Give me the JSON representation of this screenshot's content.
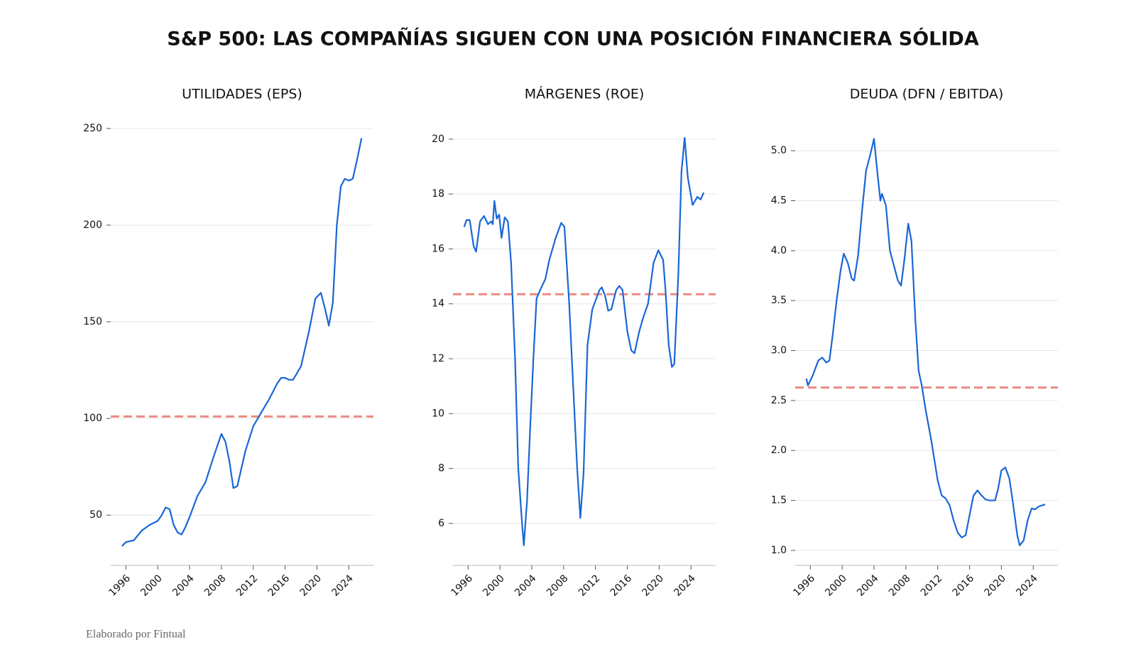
{
  "title": "S&P 500: LAS COMPAÑÍAS SIGUEN CON UNA POSICIÓN FINANCIERA SÓLIDA",
  "footer": "Elaborado por Fintual",
  "chart_data": [
    {
      "type": "line",
      "title": "UTILIDADES (EPS)",
      "color": "#1a66d6",
      "xlim": [
        1994.1,
        2027.1
      ],
      "xticks": [
        1996,
        2000,
        2004,
        2008,
        2012,
        2016,
        2020,
        2024
      ],
      "ylim": [
        24,
        254
      ],
      "yticks": [
        50,
        100,
        150,
        200,
        250
      ],
      "grid": true,
      "reference_line": {
        "value": 101,
        "color": "#ec8a82",
        "style": "dashed"
      },
      "x": [
        1995.5,
        1996,
        1997,
        1998,
        1999,
        2000,
        2000.5,
        2001,
        2001.5,
        2002,
        2002.5,
        2003,
        2003.5,
        2004,
        2005,
        2006,
        2007,
        2008,
        2008.5,
        2009,
        2009.5,
        2010,
        2011,
        2012,
        2013,
        2014,
        2015,
        2015.5,
        2016,
        2016.5,
        2017,
        2018,
        2019,
        2019.8,
        2020.5,
        2021,
        2021.5,
        2022,
        2022.5,
        2023,
        2023.5,
        2024,
        2024.5,
        2025,
        2025.6
      ],
      "values": [
        34,
        36,
        37,
        42,
        45,
        47,
        50,
        54,
        53,
        45,
        41,
        40,
        44,
        49,
        60,
        67,
        80,
        92,
        88,
        78,
        64,
        65,
        83,
        96,
        103,
        110,
        118,
        121,
        121,
        120,
        120,
        127,
        145,
        162,
        165,
        157,
        148,
        160,
        200,
        220,
        224,
        223,
        224,
        233,
        245
      ]
    },
    {
      "type": "line",
      "title": "MÁRGENES (ROE)",
      "color": "#1a66d6",
      "xlim": [
        1994.1,
        2027.1
      ],
      "xticks": [
        1996,
        2000,
        2004,
        2008,
        2012,
        2016,
        2020,
        2024
      ],
      "ylim": [
        4.47,
        20.67
      ],
      "yticks": [
        6,
        8,
        10,
        12,
        14,
        16,
        18,
        20
      ],
      "grid": true,
      "reference_line": {
        "value": 14.35,
        "color": "#ec8a82",
        "style": "dashed"
      },
      "x": [
        1995.5,
        1995.8,
        1996.2,
        1996.7,
        1997,
        1997.5,
        1998,
        1998.5,
        1998.9,
        1999.1,
        1999.3,
        1999.6,
        1999.9,
        2000.2,
        2000.6,
        2001,
        2001.4,
        2001.9,
        2002.3,
        2002.8,
        2003,
        2003.4,
        2003.8,
        2004.2,
        2004.6,
        2005.2,
        2005.7,
        2006.2,
        2007,
        2007.7,
        2008.1,
        2008.7,
        2009.2,
        2009.7,
        2010.1,
        2010.5,
        2011,
        2011.6,
        2012.5,
        2012.8,
        2013.2,
        2013.6,
        2014,
        2014.6,
        2015,
        2015.4,
        2016,
        2016.5,
        2016.9,
        2017.5,
        2018,
        2018.6,
        2019.3,
        2019.9,
        2020.5,
        2020.8,
        2021.2,
        2021.6,
        2021.9,
        2022.4,
        2022.8,
        2023.2,
        2023.6,
        2024.2,
        2024.8,
        2025.2,
        2025.6
      ],
      "values": [
        16.8,
        17.05,
        17.05,
        16.1,
        15.9,
        17.0,
        17.2,
        16.9,
        17.0,
        16.9,
        17.75,
        17.1,
        17.25,
        16.4,
        17.15,
        17.0,
        15.5,
        12.0,
        8.0,
        5.9,
        5.2,
        6.8,
        9.5,
        12.0,
        14.2,
        14.6,
        14.9,
        15.6,
        16.4,
        16.95,
        16.8,
        14.0,
        11.0,
        8.0,
        6.2,
        7.8,
        12.5,
        13.8,
        14.5,
        14.6,
        14.3,
        13.75,
        13.8,
        14.5,
        14.65,
        14.5,
        13.0,
        12.3,
        12.2,
        13.0,
        13.5,
        14.0,
        15.5,
        15.95,
        15.6,
        14.5,
        12.5,
        11.7,
        11.8,
        15.0,
        18.8,
        20.05,
        18.6,
        17.6,
        17.9,
        17.8,
        18.05
      ]
    },
    {
      "type": "line",
      "title": "DEUDA (DFN / EBITDA)",
      "color": "#1a66d6",
      "xlim": [
        1994.1,
        2027.1
      ],
      "xticks": [
        1996,
        2000,
        2004,
        2008,
        2012,
        2016,
        2020,
        2024
      ],
      "ylim": [
        0.85,
        5.3
      ],
      "yticks": [
        {
          "value": 1,
          "label": "1.0"
        },
        1.5,
        {
          "value": 2,
          "label": "2.0"
        },
        2.5,
        {
          "value": 3,
          "label": "3.0"
        },
        3.5,
        {
          "value": 4,
          "label": "4.0"
        },
        4.5,
        {
          "value": 5,
          "label": "5.0"
        }
      ],
      "grid": true,
      "reference_line": {
        "value": 2.63,
        "color": "#ec8a82",
        "style": "dashed"
      },
      "x": [
        1995.5,
        1995.7,
        1996.3,
        1997,
        1997.5,
        1998,
        1998.4,
        1998.8,
        1999.3,
        1999.8,
        2000.2,
        2000.7,
        2001.2,
        2001.5,
        2002,
        2002.5,
        2003,
        2003.5,
        2004,
        2004.4,
        2004.8,
        2005,
        2005.5,
        2006,
        2006.5,
        2007,
        2007.4,
        2007.8,
        2008.3,
        2008.7,
        2009.2,
        2009.6,
        2010,
        2010.5,
        2011.2,
        2012,
        2012.5,
        2013,
        2013.5,
        2014,
        2014.5,
        2015,
        2015.5,
        2016,
        2016.5,
        2017,
        2017.5,
        2018,
        2018.5,
        2019.2,
        2019.6,
        2020,
        2020.5,
        2021,
        2021.5,
        2022,
        2022.3,
        2022.8,
        2023.3,
        2023.8,
        2024.2,
        2024.7,
        2025.5
      ],
      "values": [
        2.72,
        2.65,
        2.75,
        2.9,
        2.93,
        2.88,
        2.9,
        3.15,
        3.5,
        3.8,
        3.97,
        3.88,
        3.72,
        3.7,
        3.95,
        4.4,
        4.8,
        4.95,
        5.12,
        4.8,
        4.5,
        4.57,
        4.45,
        4.0,
        3.85,
        3.7,
        3.65,
        3.9,
        4.27,
        4.1,
        3.3,
        2.8,
        2.65,
        2.4,
        2.1,
        1.7,
        1.55,
        1.52,
        1.45,
        1.3,
        1.18,
        1.13,
        1.15,
        1.35,
        1.55,
        1.6,
        1.55,
        1.51,
        1.5,
        1.5,
        1.62,
        1.8,
        1.83,
        1.72,
        1.45,
        1.15,
        1.05,
        1.1,
        1.3,
        1.42,
        1.41,
        1.44,
        1.46
      ]
    }
  ]
}
